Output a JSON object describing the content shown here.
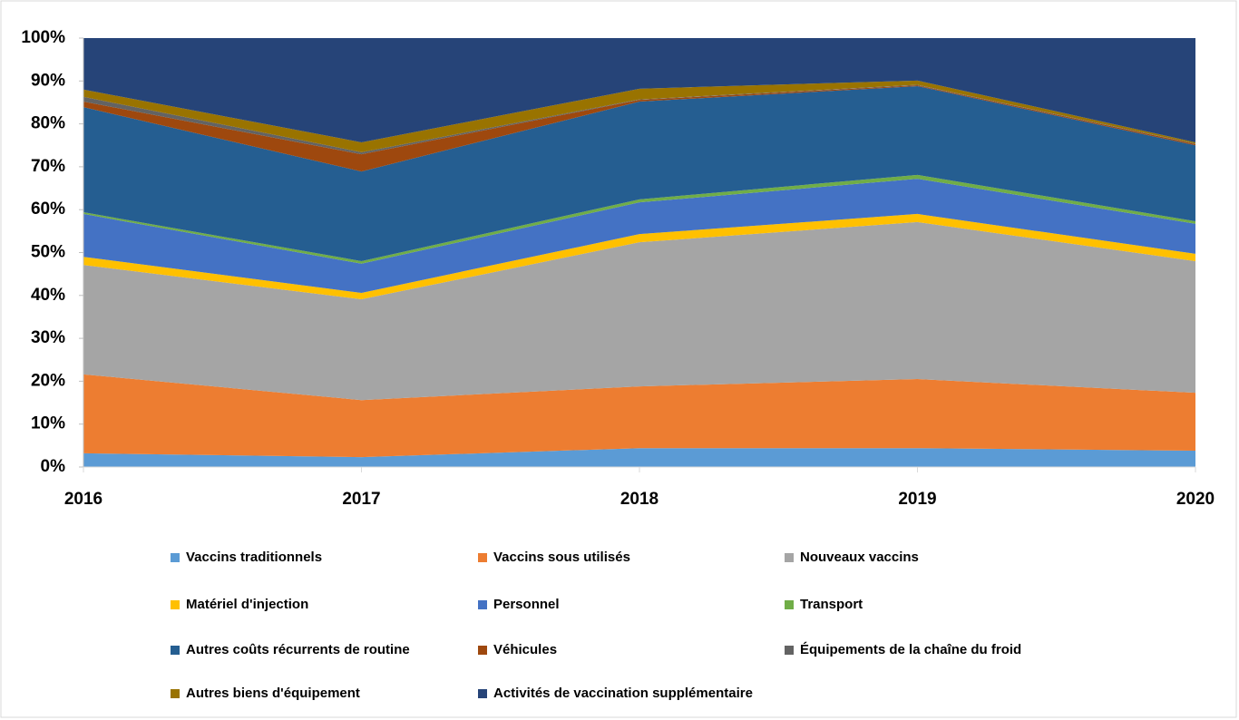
{
  "chart_data": {
    "type": "stacked_area",
    "categories": [
      "2016",
      "2017",
      "2018",
      "2019",
      "2020"
    ],
    "series": [
      {
        "name": "Vaccins traditionnels",
        "color": "#5b9bd5",
        "values": [
          3.2,
          2.3,
          4.4,
          4.4,
          3.8
        ]
      },
      {
        "name": "Vaccins sous utilisés",
        "color": "#ed7d31",
        "values": [
          18.4,
          13.3,
          14.4,
          16.1,
          13.5
        ]
      },
      {
        "name": "Nouveaux vaccins",
        "color": "#a5a5a5",
        "values": [
          25.5,
          23.5,
          33.6,
          36.6,
          30.7
        ]
      },
      {
        "name": "Matériel d'injection",
        "color": "#ffc000",
        "values": [
          1.9,
          1.5,
          1.9,
          1.9,
          1.7
        ]
      },
      {
        "name": "Personnel",
        "color": "#4472c4",
        "values": [
          10,
          6.8,
          7.4,
          8.2,
          7
        ]
      },
      {
        "name": "Transport",
        "color": "#70ad47",
        "values": [
          0.4,
          0.6,
          0.7,
          0.9,
          0.6
        ]
      },
      {
        "name": "Autres coûts récurrents de routine",
        "color": "#255e91",
        "values": [
          24.5,
          20.9,
          22.8,
          20.7,
          17.7
        ]
      },
      {
        "name": "Véhicules",
        "color": "#9e480e",
        "values": [
          1.3,
          4,
          0.4,
          0.2,
          0.3
        ]
      },
      {
        "name": "Équipements de la chaîne du froid",
        "color": "#636363",
        "values": [
          1.1,
          0.5,
          0.1,
          0.1,
          0.1
        ]
      },
      {
        "name": "Autres biens d'équipement",
        "color": "#997300",
        "values": [
          1.7,
          2.3,
          2.5,
          1,
          0.3
        ]
      },
      {
        "name": "Activités de vaccination supplémentaire",
        "color": "#264478",
        "values": [
          12,
          24.3,
          11.8,
          9.9,
          24.3
        ]
      }
    ],
    "ylim": [
      0,
      100
    ],
    "yticks": [
      {
        "value": 0,
        "label": "0%"
      },
      {
        "value": 10,
        "label": "10%"
      },
      {
        "value": 20,
        "label": "20%"
      },
      {
        "value": 30,
        "label": "30%"
      },
      {
        "value": 40,
        "label": "40%"
      },
      {
        "value": 50,
        "label": "50%"
      },
      {
        "value": 60,
        "label": "60%"
      },
      {
        "value": 70,
        "label": "70%"
      },
      {
        "value": 80,
        "label": "80%"
      },
      {
        "value": 90,
        "label": "90%"
      },
      {
        "value": 100,
        "label": "100%"
      }
    ],
    "grid": false,
    "legend": "bottom"
  }
}
